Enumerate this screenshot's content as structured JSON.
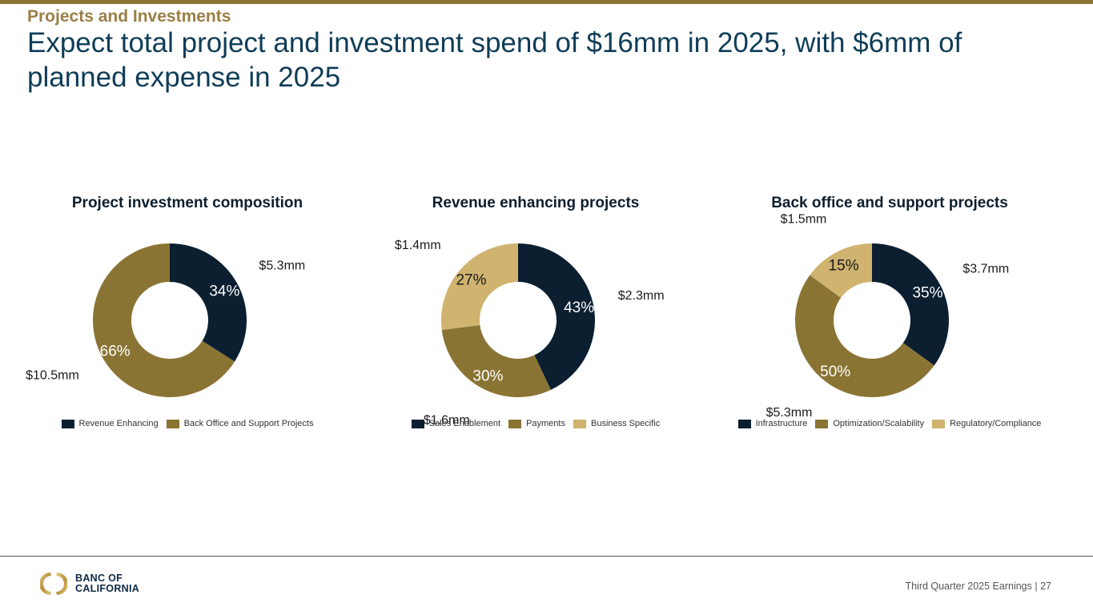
{
  "header": {
    "kicker": "Projects and Investments",
    "headline": "Expect total project and investment spend of $16mm in 2025, with $6mm of planned expense in 2025"
  },
  "colors": {
    "navy": "#0b1f31",
    "gold": "#8a7434",
    "tan": "#cfb36f",
    "kicker": "#9b7f45",
    "headline": "#0f3d57"
  },
  "chart_data": [
    {
      "type": "pie",
      "title": "Project investment composition",
      "categories": [
        "Revenue Enhancing",
        "Back Office and Support Projects"
      ],
      "values": [
        34,
        66
      ],
      "value_labels": [
        "34%",
        "66%"
      ],
      "amounts": [
        "$5.3mm",
        "$10.5mm"
      ],
      "amounts_mm": [
        5.3,
        10.5
      ],
      "colors": [
        "#0b1f31",
        "#8a7434"
      ],
      "label_colors": [
        "#ffffff",
        "#ffffff"
      ],
      "legend": "bottom"
    },
    {
      "type": "pie",
      "title": "Revenue enhancing projects",
      "categories": [
        "Sales Enablement",
        "Payments",
        "Business Specific"
      ],
      "values": [
        43,
        30,
        27
      ],
      "value_labels": [
        "43%",
        "30%",
        "27%"
      ],
      "amounts": [
        "$2.3mm",
        "$1.6mm",
        "$1.4mm"
      ],
      "amounts_mm": [
        2.3,
        1.6,
        1.4
      ],
      "colors": [
        "#0b1f31",
        "#8a7434",
        "#cfb36f"
      ],
      "label_colors": [
        "#ffffff",
        "#ffffff",
        "#1a1a1a"
      ],
      "legend": "bottom"
    },
    {
      "type": "pie",
      "title": "Back office and support projects",
      "categories": [
        "Infrastructure",
        "Optimization/Scalability",
        "Regulatory/Compliance"
      ],
      "values": [
        35,
        50,
        15
      ],
      "value_labels": [
        "35%",
        "50%",
        "15%"
      ],
      "amounts": [
        "$3.7mm",
        "$5.3mm",
        "$1.5mm"
      ],
      "amounts_mm": [
        3.7,
        5.3,
        1.5
      ],
      "colors": [
        "#0b1f31",
        "#8a7434",
        "#cfb36f"
      ],
      "label_colors": [
        "#ffffff",
        "#ffffff",
        "#1a1a1a"
      ],
      "legend": "bottom"
    }
  ],
  "footer": {
    "logo_line1": "BANC OF",
    "logo_line2": "CALIFORNIA",
    "report": "Third Quarter 2025 Earnings |",
    "page": "27"
  }
}
